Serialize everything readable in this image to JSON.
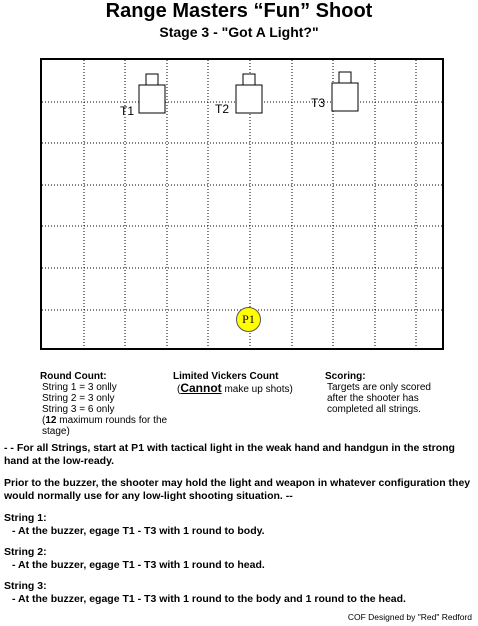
{
  "header": {
    "title": "Range Masters “Fun” Shoot",
    "subtitle": "Stage 3 - \"Got A Light?\""
  },
  "stage": {
    "targets": [
      {
        "label": "T1",
        "name": "target-t1"
      },
      {
        "label": "T2",
        "name": "target-t2"
      },
      {
        "label": "T3",
        "name": "target-t3"
      }
    ],
    "position": {
      "label": "P1",
      "color": "#ffff00"
    }
  },
  "round_count": {
    "heading": "Round Count:",
    "lines": [
      "String 1 = 3 onlly",
      "String 2 = 3 only",
      "String 3 = 6 only"
    ],
    "max_bold": "12",
    "max_rest": " maximum rounds for the stage)",
    "max_open": "("
  },
  "vickers": {
    "heading": "Limited Vickers Count",
    "open": "(",
    "cannot": "Cannot",
    "rest": " make up shots)"
  },
  "scoring": {
    "heading": "Scoring:",
    "text": "Targets are only scored after the shooter has completed all strings."
  },
  "instructions": {
    "p1": "- - For all Strings, start at P1 with tactical light in the weak hand and handgun in the strong hand at the low-ready.",
    "p2": "Prior to the buzzer, the shooter may hold the light and weapon in whatever configuration they would normally use for any low-light shooting situation. --"
  },
  "strings": [
    {
      "title": "String 1:",
      "text": "- At the buzzer, egage T1 - T3 with 1 round to body."
    },
    {
      "title": "String 2:",
      "text": "- At the buzzer, egage T1 - T3 with 1 round to head."
    },
    {
      "title": "String 3:",
      "text": "- At the buzzer, egage T1 - T3 with 1 round to the body and 1 round to the head."
    }
  ],
  "footer": {
    "credit": "COF Designed by \"Red\" Redford"
  }
}
